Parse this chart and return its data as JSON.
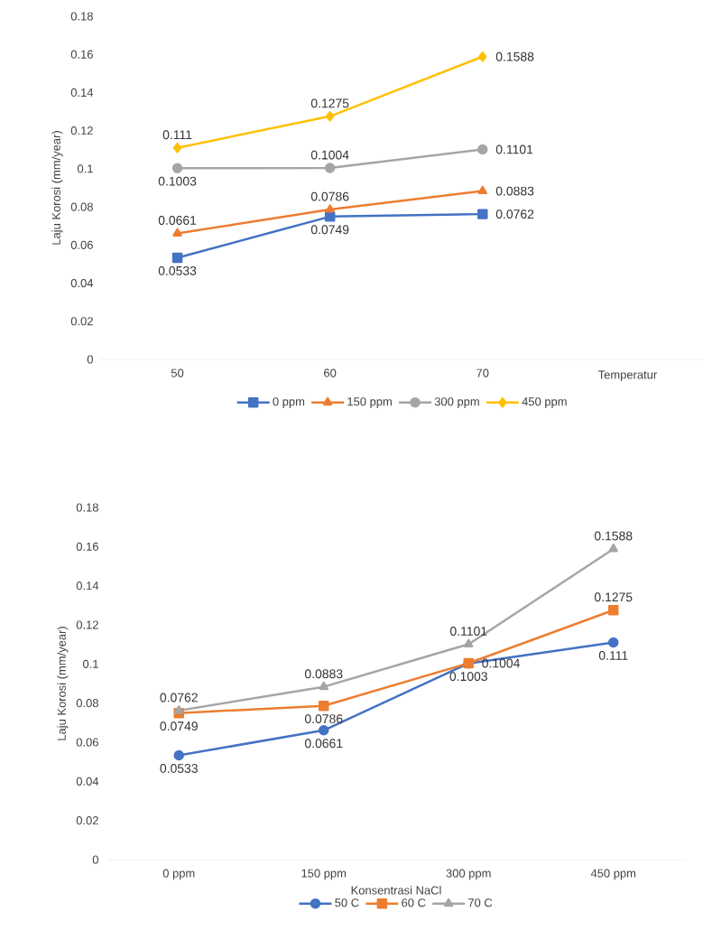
{
  "chart_data": [
    {
      "type": "line",
      "categories": [
        "50",
        "60",
        "70"
      ],
      "xlabel": "Temperatur",
      "ylabel": "Laju Korosi (mm/year)",
      "ylim": [
        0,
        0.18
      ],
      "yticks": [
        0,
        0.02,
        0.04,
        0.06,
        0.08,
        0.1,
        0.12,
        0.14,
        0.16,
        0.18
      ],
      "grid": false,
      "legend": "bottom",
      "data_labels": true,
      "series": [
        {
          "name": "0 ppm",
          "color": "#4472c4",
          "marker": "square",
          "values": [
            0.0533,
            0.0749,
            0.0762
          ]
        },
        {
          "name": "150 ppm",
          "color": "#ed7d31",
          "marker": "triangle",
          "values": [
            0.0661,
            0.0786,
            0.0883
          ]
        },
        {
          "name": "300 ppm",
          "color": "#a5a5a5",
          "marker": "circle",
          "values": [
            0.1003,
            0.1004,
            0.1101
          ]
        },
        {
          "name": "450 ppm",
          "color": "#ffc000",
          "marker": "diamond",
          "values": [
            0.111,
            0.1275,
            0.1588
          ]
        }
      ]
    },
    {
      "type": "line",
      "categories": [
        "0 ppm",
        "150 ppm",
        "300 ppm",
        "450 ppm"
      ],
      "xlabel": "Konsentrasi NaCl",
      "ylabel": "Laju Korosi (mm/year)",
      "ylim": [
        0,
        0.18
      ],
      "yticks": [
        0,
        0.02,
        0.04,
        0.06,
        0.08,
        0.1,
        0.12,
        0.14,
        0.16,
        0.18
      ],
      "grid": false,
      "legend": "bottom",
      "data_labels": true,
      "series": [
        {
          "name": "50 C",
          "color": "#4472c4",
          "marker": "circle",
          "values": [
            0.0533,
            0.0661,
            0.1003,
            0.111
          ]
        },
        {
          "name": "60 C",
          "color": "#ed7d31",
          "marker": "square",
          "values": [
            0.0749,
            0.0786,
            0.1004,
            0.1275
          ]
        },
        {
          "name": "70 C",
          "color": "#a5a5a5",
          "marker": "triangle",
          "values": [
            0.0762,
            0.0883,
            0.1101,
            0.1588
          ]
        }
      ]
    }
  ]
}
